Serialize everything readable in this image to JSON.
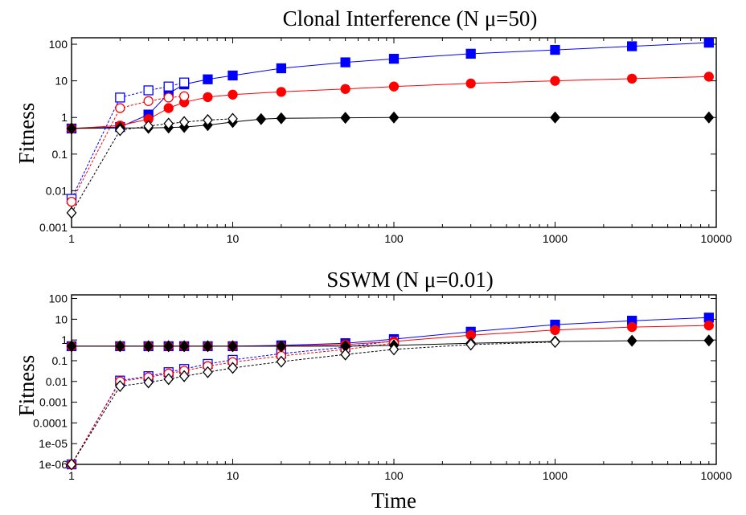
{
  "chart_data": [
    {
      "type": "line",
      "title": "Clonal Interference (N μ=50)",
      "ylabel": "Fitness",
      "xlabel": "",
      "x_scale": "log",
      "y_scale": "log",
      "xlim": [
        1,
        10000
      ],
      "ylim": [
        0.001,
        150
      ],
      "x_ticks": [
        "1",
        "10",
        "100",
        "1000",
        "10000"
      ],
      "y_ticks": [
        "0.001",
        "0.01",
        "0.1",
        "1",
        "10",
        "100"
      ],
      "grid": false,
      "series": [
        {
          "color": "#0000ff",
          "marker": "square-filled",
          "points": [
            [
              1,
              0.5
            ],
            [
              2,
              0.55
            ],
            [
              3,
              1.2
            ],
            [
              4,
              4.5
            ],
            [
              5,
              8
            ],
            [
              7,
              11
            ],
            [
              10,
              14
            ],
            [
              20,
              22
            ],
            [
              50,
              32
            ],
            [
              100,
              40
            ],
            [
              300,
              55
            ],
            [
              1000,
              70
            ],
            [
              3000,
              88
            ],
            [
              9000,
              110
            ]
          ]
        },
        {
          "color": "#0000ff",
          "marker": "square-open",
          "points": [
            [
              1,
              0.006
            ],
            [
              2,
              3.5
            ],
            [
              3,
              5.5
            ],
            [
              4,
              7
            ],
            [
              5,
              9
            ]
          ]
        },
        {
          "color": "#ff0000",
          "marker": "circle-filled",
          "points": [
            [
              1,
              0.5
            ],
            [
              2,
              0.6
            ],
            [
              3,
              0.9
            ],
            [
              4,
              1.8
            ],
            [
              5,
              2.6
            ],
            [
              7,
              3.6
            ],
            [
              10,
              4.2
            ],
            [
              20,
              5
            ],
            [
              50,
              6
            ],
            [
              100,
              7
            ],
            [
              300,
              8.5
            ],
            [
              1000,
              10
            ],
            [
              3000,
              11.5
            ],
            [
              9000,
              13
            ]
          ]
        },
        {
          "color": "#ff0000",
          "marker": "circle-open",
          "points": [
            [
              1,
              0.005
            ],
            [
              2,
              1.8
            ],
            [
              3,
              2.8
            ],
            [
              4,
              3.5
            ],
            [
              5,
              3.8
            ]
          ]
        },
        {
          "color": "#000000",
          "marker": "diamond-filled",
          "points": [
            [
              1,
              0.5
            ],
            [
              2,
              0.52
            ],
            [
              3,
              0.52
            ],
            [
              4,
              0.53
            ],
            [
              5,
              0.55
            ],
            [
              7,
              0.62
            ],
            [
              10,
              0.75
            ],
            [
              15,
              0.9
            ],
            [
              20,
              0.95
            ],
            [
              50,
              0.98
            ],
            [
              100,
              1
            ],
            [
              1000,
              1
            ],
            [
              9000,
              1
            ]
          ]
        },
        {
          "color": "#000000",
          "marker": "diamond-open",
          "points": [
            [
              1,
              0.0025
            ],
            [
              2,
              0.45
            ],
            [
              3,
              0.58
            ],
            [
              4,
              0.68
            ],
            [
              5,
              0.75
            ],
            [
              7,
              0.85
            ],
            [
              10,
              0.92
            ]
          ]
        }
      ]
    },
    {
      "type": "line",
      "title": "SSWM (N μ=0.01)",
      "ylabel": "Fitness",
      "xlabel": "Time",
      "x_scale": "log",
      "y_scale": "log",
      "xlim": [
        1,
        10000
      ],
      "ylim": [
        1e-06,
        150
      ],
      "x_ticks": [
        "1",
        "10",
        "100",
        "1000",
        "10000"
      ],
      "y_ticks": [
        "1e-06",
        "1e-05",
        "0.0001",
        "0.001",
        "0.01",
        "0.1",
        "1",
        "10",
        "100"
      ],
      "grid": false,
      "series": [
        {
          "color": "#0000ff",
          "marker": "square-filled",
          "points": [
            [
              1,
              0.5
            ],
            [
              2,
              0.5
            ],
            [
              3,
              0.5
            ],
            [
              4,
              0.5
            ],
            [
              5,
              0.5
            ],
            [
              7,
              0.5
            ],
            [
              10,
              0.5
            ],
            [
              20,
              0.55
            ],
            [
              50,
              0.7
            ],
            [
              100,
              1.1
            ],
            [
              300,
              2.5
            ],
            [
              1000,
              5.5
            ],
            [
              3000,
              8.5
            ],
            [
              9000,
              12
            ]
          ]
        },
        {
          "color": "#0000ff",
          "marker": "square-open",
          "points": [
            [
              1,
              1e-06
            ],
            [
              2,
              0.011
            ],
            [
              3,
              0.018
            ],
            [
              4,
              0.028
            ],
            [
              5,
              0.04
            ],
            [
              7,
              0.07
            ],
            [
              10,
              0.11
            ],
            [
              20,
              0.22
            ],
            [
              50,
              0.45
            ],
            [
              100,
              0.9
            ]
          ]
        },
        {
          "color": "#ff0000",
          "marker": "circle-filled",
          "points": [
            [
              1,
              0.5
            ],
            [
              2,
              0.5
            ],
            [
              3,
              0.5
            ],
            [
              4,
              0.5
            ],
            [
              5,
              0.5
            ],
            [
              7,
              0.5
            ],
            [
              10,
              0.5
            ],
            [
              20,
              0.5
            ],
            [
              50,
              0.6
            ],
            [
              100,
              0.85
            ],
            [
              300,
              1.7
            ],
            [
              1000,
              3
            ],
            [
              3000,
              4.2
            ],
            [
              9000,
              5
            ]
          ]
        },
        {
          "color": "#ff0000",
          "marker": "circle-open",
          "points": [
            [
              1,
              1e-06
            ],
            [
              2,
              0.01
            ],
            [
              3,
              0.016
            ],
            [
              4,
              0.024
            ],
            [
              5,
              0.033
            ],
            [
              7,
              0.055
            ],
            [
              10,
              0.085
            ],
            [
              20,
              0.17
            ],
            [
              50,
              0.35
            ],
            [
              100,
              0.7
            ]
          ]
        },
        {
          "color": "#000000",
          "marker": "diamond-filled",
          "points": [
            [
              1,
              0.5
            ],
            [
              2,
              0.5
            ],
            [
              3,
              0.5
            ],
            [
              4,
              0.5
            ],
            [
              5,
              0.5
            ],
            [
              7,
              0.5
            ],
            [
              10,
              0.5
            ],
            [
              20,
              0.5
            ],
            [
              50,
              0.5
            ],
            [
              100,
              0.55
            ],
            [
              300,
              0.7
            ],
            [
              1000,
              0.85
            ],
            [
              3000,
              0.92
            ],
            [
              9000,
              0.95
            ]
          ]
        },
        {
          "color": "#000000",
          "marker": "diamond-open",
          "points": [
            [
              1,
              1e-06
            ],
            [
              2,
              0.006
            ],
            [
              3,
              0.009
            ],
            [
              4,
              0.013
            ],
            [
              5,
              0.018
            ],
            [
              7,
              0.028
            ],
            [
              10,
              0.045
            ],
            [
              20,
              0.09
            ],
            [
              50,
              0.2
            ],
            [
              100,
              0.35
            ],
            [
              300,
              0.6
            ],
            [
              1000,
              0.8
            ]
          ]
        }
      ]
    }
  ]
}
